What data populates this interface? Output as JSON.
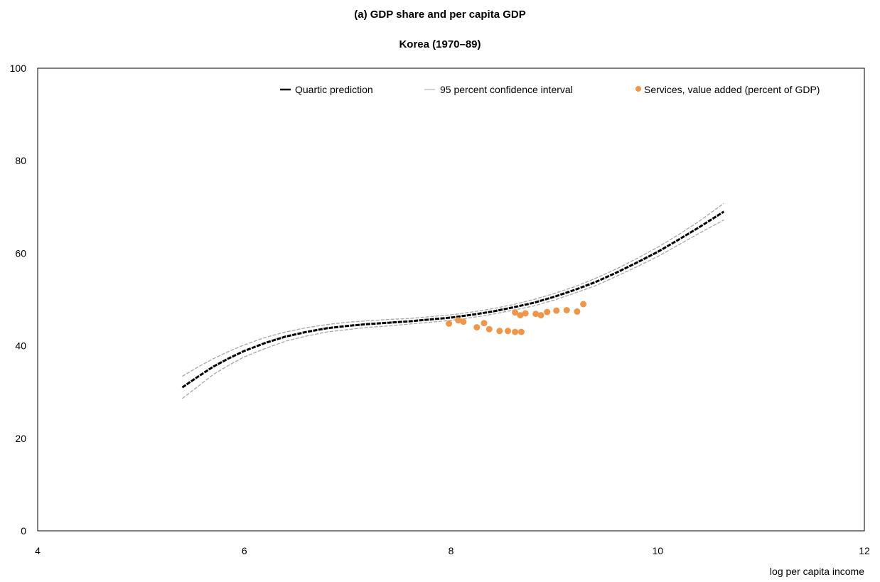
{
  "chart_data": {
    "type": "scatter",
    "title": "(a) GDP share and per capita GDP",
    "subtitle": "Korea (1970–89)",
    "xlabel": "log per capita income",
    "ylabel": "",
    "xlim": [
      4,
      12
    ],
    "ylim": [
      0,
      100
    ],
    "x_ticks": [
      "4",
      "6",
      "8",
      "10",
      "12"
    ],
    "y_ticks": [
      "0",
      "20",
      "40",
      "60",
      "80",
      "100"
    ],
    "grid": false,
    "legend_position": "top-right",
    "legend": [
      {
        "label": "Quartic prediction",
        "style": "line",
        "color": "#000000"
      },
      {
        "label": "95 percent confidence interval",
        "style": "line",
        "color": "#a6a6a6"
      },
      {
        "label": "Services, value added (percent of GDP)",
        "style": "marker",
        "color": "#f0964a"
      }
    ],
    "series": [
      {
        "name": "Quartic prediction",
        "type": "line",
        "color": "#000000",
        "points": [
          [
            5.4,
            31.0
          ],
          [
            5.55,
            33.3
          ],
          [
            5.7,
            35.5
          ],
          [
            5.85,
            37.3
          ],
          [
            6.0,
            38.9
          ],
          [
            6.2,
            40.6
          ],
          [
            6.4,
            42.0
          ],
          [
            6.6,
            43.0
          ],
          [
            6.8,
            43.8
          ],
          [
            7.0,
            44.3
          ],
          [
            7.2,
            44.7
          ],
          [
            7.4,
            45.0
          ],
          [
            7.6,
            45.3
          ],
          [
            7.8,
            45.7
          ],
          [
            8.0,
            46.1
          ],
          [
            8.2,
            46.7
          ],
          [
            8.4,
            47.4
          ],
          [
            8.6,
            48.3
          ],
          [
            8.8,
            49.3
          ],
          [
            9.0,
            50.6
          ],
          [
            9.2,
            52.1
          ],
          [
            9.4,
            53.8
          ],
          [
            9.6,
            55.8
          ],
          [
            9.8,
            58.0
          ],
          [
            10.0,
            60.3
          ],
          [
            10.2,
            62.9
          ],
          [
            10.4,
            65.6
          ],
          [
            10.64,
            69.0
          ]
        ]
      },
      {
        "name": "95 percent confidence interval",
        "type": "band",
        "color": "#a6a6a6",
        "x": [
          5.4,
          5.55,
          5.7,
          5.85,
          6.0,
          6.2,
          6.4,
          6.6,
          6.8,
          7.0,
          7.2,
          7.4,
          7.6,
          7.8,
          8.0,
          8.2,
          8.4,
          8.6,
          8.8,
          9.0,
          9.2,
          9.4,
          9.6,
          9.8,
          10.0,
          10.2,
          10.4,
          10.64
        ],
        "upper": [
          33.4,
          35.4,
          37.2,
          38.8,
          40.2,
          41.8,
          43.0,
          43.9,
          44.6,
          45.1,
          45.4,
          45.7,
          45.9,
          46.3,
          46.7,
          47.3,
          48.0,
          48.9,
          50.0,
          51.3,
          52.8,
          54.6,
          56.6,
          58.9,
          61.3,
          64.0,
          66.9,
          70.8
        ],
        "lower": [
          28.6,
          31.2,
          33.8,
          35.8,
          37.6,
          39.4,
          41.0,
          42.1,
          43.0,
          43.5,
          44.0,
          44.3,
          44.7,
          45.1,
          45.5,
          46.1,
          46.8,
          47.7,
          48.6,
          49.9,
          51.4,
          53.0,
          55.0,
          57.1,
          59.3,
          61.8,
          64.3,
          67.2
        ]
      },
      {
        "name": "Services, value added (percent of GDP)",
        "type": "scatter",
        "color": "#f0964a",
        "points": [
          [
            7.98,
            44.8
          ],
          [
            8.07,
            45.5
          ],
          [
            8.12,
            45.2
          ],
          [
            8.25,
            44.0
          ],
          [
            8.32,
            44.9
          ],
          [
            8.37,
            43.6
          ],
          [
            8.47,
            43.2
          ],
          [
            8.55,
            43.2
          ],
          [
            8.62,
            43.0
          ],
          [
            8.68,
            43.0
          ],
          [
            8.62,
            47.2
          ],
          [
            8.67,
            46.6
          ],
          [
            8.72,
            47.0
          ],
          [
            8.82,
            46.9
          ],
          [
            8.87,
            46.6
          ],
          [
            8.93,
            47.3
          ],
          [
            9.02,
            47.6
          ],
          [
            9.12,
            47.7
          ],
          [
            9.22,
            47.4
          ],
          [
            9.28,
            49.0
          ]
        ]
      }
    ]
  }
}
